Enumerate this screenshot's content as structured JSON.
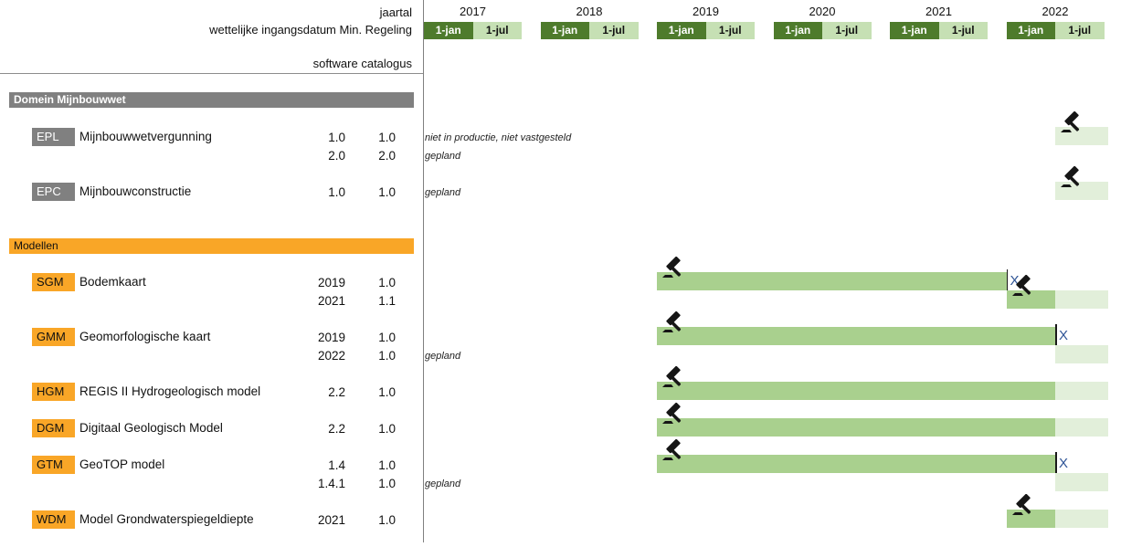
{
  "header": {
    "line1": "jaartal",
    "line2": "wettelijke ingangsdatum Min. Regeling",
    "line3": "software catalogus"
  },
  "timeline": {
    "years": [
      "2017",
      "2018",
      "2019",
      "2020",
      "2021",
      "2022"
    ],
    "halves": [
      "1-jan",
      "1-jul"
    ]
  },
  "colors": {
    "dark_green": "#4e7b2c",
    "light_green": "#c6e0b4",
    "bar_green": "#a9d08e",
    "bar_planned": "#e2efda",
    "gray": "#808080",
    "orange": "#f9a627",
    "x_blue": "#2e5496"
  },
  "sections": [
    {
      "title": "Domein Mijnbouwwet",
      "variant": "gray",
      "rows": [
        {
          "code": "EPL",
          "name": "Mijnbouwwetvergunning",
          "lines": [
            {
              "ingangsdatum": "1.0",
              "catalogus": "1.0",
              "note": "niet in productie, niet vastgesteld",
              "bars": [
                {
                  "kind": "planned",
                  "start": "2022-07",
                  "end": "2023-01",
                  "gavel": true
                }
              ]
            },
            {
              "ingangsdatum": "2.0",
              "catalogus": "2.0",
              "note": "gepland",
              "bars": []
            }
          ]
        },
        {
          "code": "EPC",
          "name": "Mijnbouwconstructie",
          "lines": [
            {
              "ingangsdatum": "1.0",
              "catalogus": "1.0",
              "note": "gepland",
              "bars": [
                {
                  "kind": "planned",
                  "start": "2022-07",
                  "end": "2023-01",
                  "gavel": true
                }
              ]
            }
          ]
        }
      ]
    },
    {
      "title": "Modellen",
      "variant": "orange",
      "rows": [
        {
          "code": "SGM",
          "name": "Bodemkaart",
          "lines": [
            {
              "ingangsdatum": "2019",
              "catalogus": "1.0",
              "note": "",
              "bars": [
                {
                  "kind": "solid",
                  "start": "2019-01",
                  "end": "2022-01",
                  "gavel": true,
                  "end_tick": true,
                  "end_marker": "X"
                }
              ]
            },
            {
              "ingangsdatum": "2021",
              "catalogus": "1.1",
              "note": "",
              "bars": [
                {
                  "kind": "solid",
                  "start": "2022-01",
                  "end": "2022-07",
                  "gavel": true
                },
                {
                  "kind": "planned",
                  "start": "2022-07",
                  "end": "2023-01"
                }
              ]
            }
          ]
        },
        {
          "code": "GMM",
          "name": "Geomorfologische kaart",
          "lines": [
            {
              "ingangsdatum": "2019",
              "catalogus": "1.0",
              "note": "",
              "bars": [
                {
                  "kind": "solid",
                  "start": "2019-01",
                  "end": "2022-07",
                  "gavel": true,
                  "end_tick": true,
                  "end_marker": "X"
                }
              ]
            },
            {
              "ingangsdatum": "2022",
              "catalogus": "1.0",
              "note": "gepland",
              "bars": [
                {
                  "kind": "planned",
                  "start": "2022-07",
                  "end": "2023-01"
                }
              ]
            }
          ]
        },
        {
          "code": "HGM",
          "name": "REGIS II Hydrogeologisch model",
          "lines": [
            {
              "ingangsdatum": "2.2",
              "catalogus": "1.0",
              "note": "",
              "bars": [
                {
                  "kind": "solid",
                  "start": "2019-01",
                  "end": "2022-07",
                  "gavel": true
                },
                {
                  "kind": "planned",
                  "start": "2022-07",
                  "end": "2023-01"
                }
              ]
            }
          ]
        },
        {
          "code": "DGM",
          "name": "Digitaal Geologisch Model",
          "lines": [
            {
              "ingangsdatum": "2.2",
              "catalogus": "1.0",
              "note": "",
              "bars": [
                {
                  "kind": "solid",
                  "start": "2019-01",
                  "end": "2022-07",
                  "gavel": true
                },
                {
                  "kind": "planned",
                  "start": "2022-07",
                  "end": "2023-01"
                }
              ]
            }
          ]
        },
        {
          "code": "GTM",
          "name": "GeoTOP model",
          "lines": [
            {
              "ingangsdatum": "1.4",
              "catalogus": "1.0",
              "note": "",
              "bars": [
                {
                  "kind": "solid",
                  "start": "2019-01",
                  "end": "2022-07",
                  "gavel": true,
                  "end_tick": true,
                  "end_marker": "X"
                }
              ]
            },
            {
              "ingangsdatum": "1.4.1",
              "catalogus": "1.0",
              "note": "gepland",
              "bars": [
                {
                  "kind": "planned",
                  "start": "2022-07",
                  "end": "2023-01"
                }
              ]
            }
          ]
        },
        {
          "code": "WDM",
          "name": "Model Grondwaterspiegeldiepte",
          "lines": [
            {
              "ingangsdatum": "2021",
              "catalogus": "1.0",
              "note": "",
              "bars": [
                {
                  "kind": "solid",
                  "start": "2022-01",
                  "end": "2022-07",
                  "gavel": true
                },
                {
                  "kind": "planned",
                  "start": "2022-07",
                  "end": "2023-01"
                }
              ]
            }
          ]
        }
      ]
    }
  ]
}
